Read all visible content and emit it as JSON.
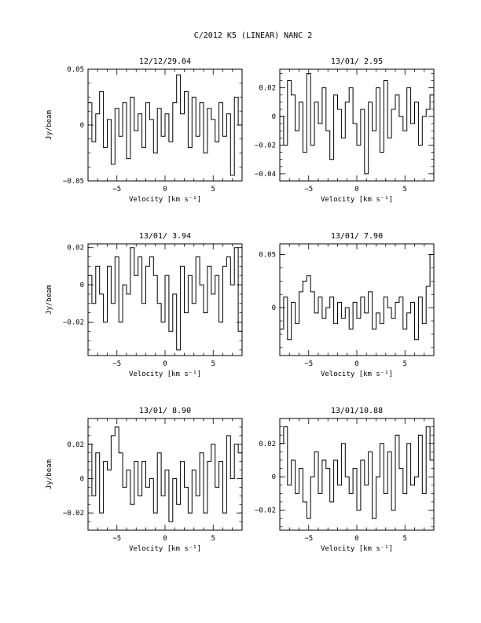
{
  "figure": {
    "title": "C/2012 K5 (LINEAR)   NANC      2"
  },
  "chart_data": [
    {
      "type": "line",
      "title": "12/12/29.04",
      "xlabel": "Velocity [km s⁻¹]",
      "ylabel": "Jy/beam",
      "xlim": [
        -8,
        8
      ],
      "ylim": [
        -0.05,
        0.05
      ],
      "xticks": [
        -5,
        0,
        5
      ],
      "yticks": [
        -0.05,
        0,
        0.05
      ],
      "ytick_labels": [
        "−0.05",
        "0",
        "0.05"
      ],
      "x": [
        -7.8,
        -7.4,
        -7.0,
        -6.6,
        -6.2,
        -5.8,
        -5.4,
        -5.0,
        -4.6,
        -4.2,
        -3.8,
        -3.4,
        -3.0,
        -2.6,
        -2.2,
        -1.8,
        -1.4,
        -1.0,
        -0.6,
        -0.2,
        0.2,
        0.6,
        1.0,
        1.4,
        1.8,
        2.2,
        2.6,
        3.0,
        3.4,
        3.8,
        4.2,
        4.6,
        5.0,
        5.4,
        5.8,
        6.2,
        6.6,
        7.0,
        7.4,
        7.8
      ],
      "y": [
        0.02,
        -0.015,
        0.01,
        0.03,
        -0.02,
        0.005,
        -0.035,
        0.015,
        -0.01,
        0.02,
        -0.03,
        0.025,
        -0.005,
        0.01,
        -0.02,
        0.02,
        0.005,
        -0.025,
        0.015,
        -0.01,
        0.01,
        -0.015,
        0.02,
        0.045,
        0.01,
        0.03,
        -0.02,
        0.025,
        -0.01,
        0.02,
        -0.025,
        0.015,
        0.005,
        -0.015,
        0.02,
        -0.01,
        0.01,
        -0.045,
        0.025,
        0.0
      ]
    },
    {
      "type": "line",
      "title": "13/01/ 2.95",
      "xlabel": "Velocity [km s⁻¹]",
      "ylabel": "",
      "xlim": [
        -8,
        8
      ],
      "ylim": [
        -0.045,
        0.033
      ],
      "xticks": [
        -5,
        0,
        5
      ],
      "yticks": [
        -0.04,
        -0.02,
        0,
        0.02
      ],
      "ytick_labels": [
        "−0.04",
        "−0.02",
        "0",
        "0.02"
      ],
      "x": [
        -7.8,
        -7.4,
        -7.0,
        -6.6,
        -6.2,
        -5.8,
        -5.4,
        -5.0,
        -4.6,
        -4.2,
        -3.8,
        -3.4,
        -3.0,
        -2.6,
        -2.2,
        -1.8,
        -1.4,
        -1.0,
        -0.6,
        -0.2,
        0.2,
        0.6,
        1.0,
        1.4,
        1.8,
        2.2,
        2.6,
        3.0,
        3.4,
        3.8,
        4.2,
        4.6,
        5.0,
        5.4,
        5.8,
        6.2,
        6.6,
        7.0,
        7.4,
        7.8
      ],
      "y": [
        0.0,
        -0.02,
        0.025,
        0.015,
        -0.01,
        0.01,
        -0.025,
        0.03,
        -0.02,
        0.01,
        -0.005,
        0.02,
        -0.01,
        -0.03,
        0.015,
        0.005,
        -0.015,
        0.01,
        0.02,
        -0.005,
        -0.02,
        0.005,
        -0.04,
        0.01,
        -0.01,
        0.02,
        -0.025,
        0.025,
        -0.015,
        0.005,
        0.015,
        0.0,
        -0.01,
        0.02,
        -0.005,
        0.01,
        -0.02,
        0.0,
        0.005,
        0.015
      ]
    },
    {
      "type": "line",
      "title": "13/01/ 3.94",
      "xlabel": "Velocity [km s⁻¹]",
      "ylabel": "Jy/beam",
      "xlim": [
        -8,
        8
      ],
      "ylim": [
        -0.038,
        0.022
      ],
      "xticks": [
        -5,
        0,
        5
      ],
      "yticks": [
        -0.02,
        0,
        0.02
      ],
      "ytick_labels": [
        "−0.02",
        "0",
        "0.02"
      ],
      "x": [
        -7.8,
        -7.4,
        -7.0,
        -6.6,
        -6.2,
        -5.8,
        -5.4,
        -5.0,
        -4.6,
        -4.2,
        -3.8,
        -3.4,
        -3.0,
        -2.6,
        -2.2,
        -1.8,
        -1.4,
        -1.0,
        -0.6,
        -0.2,
        0.2,
        0.6,
        1.0,
        1.4,
        1.8,
        2.2,
        2.6,
        3.0,
        3.4,
        3.8,
        4.2,
        4.6,
        5.0,
        5.4,
        5.8,
        6.2,
        6.6,
        7.0,
        7.4,
        7.8
      ],
      "y": [
        0.005,
        -0.01,
        0.01,
        -0.005,
        -0.02,
        0.01,
        -0.01,
        0.015,
        -0.02,
        0.0,
        -0.005,
        0.02,
        0.005,
        0.015,
        -0.01,
        0.01,
        0.015,
        0.005,
        -0.01,
        -0.02,
        0.005,
        -0.025,
        -0.005,
        -0.035,
        0.01,
        -0.015,
        0.005,
        -0.01,
        0.015,
        0.0,
        -0.015,
        0.01,
        -0.005,
        0.005,
        -0.02,
        0.01,
        0.015,
        0.0,
        0.02,
        -0.025
      ]
    },
    {
      "type": "line",
      "title": "13/01/ 7.90",
      "xlabel": "Velocity [km s⁻¹]",
      "ylabel": "",
      "xlim": [
        -8,
        8
      ],
      "ylim": [
        -0.045,
        0.06
      ],
      "xticks": [
        -5,
        0,
        5
      ],
      "yticks": [
        0,
        0.05
      ],
      "ytick_labels": [
        "0",
        "0.05"
      ],
      "x": [
        -7.8,
        -7.4,
        -7.0,
        -6.6,
        -6.2,
        -5.8,
        -5.4,
        -5.0,
        -4.6,
        -4.2,
        -3.8,
        -3.4,
        -3.0,
        -2.6,
        -2.2,
        -1.8,
        -1.4,
        -1.0,
        -0.6,
        -0.2,
        0.2,
        0.6,
        1.0,
        1.4,
        1.8,
        2.2,
        2.6,
        3.0,
        3.4,
        3.8,
        4.2,
        4.6,
        5.0,
        5.4,
        5.8,
        6.2,
        6.6,
        7.0,
        7.4,
        7.8
      ],
      "y": [
        -0.02,
        0.01,
        -0.03,
        0.005,
        -0.015,
        0.015,
        0.025,
        0.03,
        0.015,
        -0.005,
        0.01,
        -0.01,
        0.0,
        0.01,
        -0.015,
        0.005,
        -0.01,
        0.0,
        -0.02,
        0.005,
        -0.01,
        0.01,
        -0.005,
        0.015,
        -0.02,
        -0.005,
        -0.015,
        0.01,
        0.0,
        -0.01,
        0.005,
        0.01,
        -0.02,
        -0.005,
        0.005,
        -0.03,
        0.01,
        -0.015,
        0.02,
        0.05
      ]
    },
    {
      "type": "line",
      "title": "13/01/ 8.90",
      "xlabel": "Velocity [km s⁻¹]",
      "ylabel": "Jy/beam",
      "xlim": [
        -8,
        8
      ],
      "ylim": [
        -0.03,
        0.035
      ],
      "xticks": [
        -5,
        0,
        5
      ],
      "yticks": [
        -0.02,
        0,
        0.02
      ],
      "ytick_labels": [
        "−0.02",
        "0",
        "0.02"
      ],
      "x": [
        -7.8,
        -7.4,
        -7.0,
        -6.6,
        -6.2,
        -5.8,
        -5.4,
        -5.0,
        -4.6,
        -4.2,
        -3.8,
        -3.4,
        -3.0,
        -2.6,
        -2.2,
        -1.8,
        -1.4,
        -1.0,
        -0.6,
        -0.2,
        0.2,
        0.6,
        1.0,
        1.4,
        1.8,
        2.2,
        2.6,
        3.0,
        3.4,
        3.8,
        4.2,
        4.6,
        5.0,
        5.4,
        5.8,
        6.2,
        6.6,
        7.0,
        7.4,
        7.8
      ],
      "y": [
        0.02,
        -0.01,
        0.015,
        -0.02,
        0.01,
        0.005,
        0.025,
        0.03,
        0.015,
        -0.005,
        0.005,
        -0.015,
        0.01,
        -0.01,
        0.01,
        -0.005,
        0.0,
        -0.02,
        0.015,
        -0.01,
        0.005,
        -0.025,
        0.0,
        -0.015,
        0.01,
        -0.005,
        -0.02,
        0.005,
        -0.01,
        0.015,
        -0.02,
        0.01,
        0.02,
        -0.005,
        0.01,
        -0.02,
        0.025,
        0.0,
        0.02,
        0.015
      ]
    },
    {
      "type": "line",
      "title": "13/01/10.88",
      "xlabel": "Velocity [km s⁻¹]",
      "ylabel": "",
      "xlim": [
        -8,
        8
      ],
      "ylim": [
        -0.032,
        0.035
      ],
      "xticks": [
        -5,
        0,
        5
      ],
      "yticks": [
        -0.02,
        0,
        0.02
      ],
      "ytick_labels": [
        "−0.02",
        "0",
        "0.02"
      ],
      "x": [
        -7.8,
        -7.4,
        -7.0,
        -6.6,
        -6.2,
        -5.8,
        -5.4,
        -5.0,
        -4.6,
        -4.2,
        -3.8,
        -3.4,
        -3.0,
        -2.6,
        -2.2,
        -1.8,
        -1.4,
        -1.0,
        -0.6,
        -0.2,
        0.2,
        0.6,
        1.0,
        1.4,
        1.8,
        2.2,
        2.6,
        3.0,
        3.4,
        3.8,
        4.2,
        4.6,
        5.0,
        5.4,
        5.8,
        6.2,
        6.6,
        7.0,
        7.4,
        7.8
      ],
      "y": [
        0.02,
        0.03,
        -0.005,
        0.01,
        -0.01,
        0.005,
        -0.015,
        -0.025,
        0.0,
        0.015,
        -0.01,
        0.01,
        0.005,
        -0.015,
        0.01,
        -0.005,
        0.02,
        0.0,
        -0.01,
        0.005,
        -0.02,
        0.01,
        -0.005,
        0.015,
        -0.025,
        0.0,
        0.02,
        -0.01,
        0.015,
        -0.02,
        0.025,
        0.005,
        -0.01,
        0.02,
        -0.005,
        0.0,
        0.025,
        -0.01,
        0.03,
        0.01
      ]
    }
  ]
}
